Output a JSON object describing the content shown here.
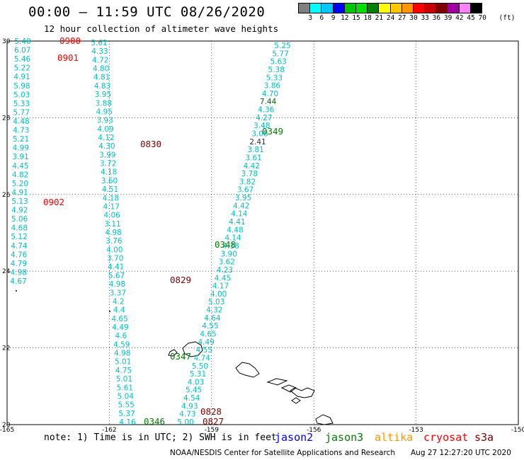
{
  "header": {
    "title": "00:00 — 11:59 UTC 08/26/2020",
    "subtitle": "12 hour collection of altimeter wave heights"
  },
  "legend": {
    "colors": [
      "#808080",
      "#00ffff",
      "#00c8ff",
      "#0000ff",
      "#00c800",
      "#00e000",
      "#008000",
      "#ffff00",
      "#ffc800",
      "#ff9600",
      "#ff0000",
      "#c80000",
      "#800000",
      "#a000a0",
      "#ff80ff",
      "#000000"
    ],
    "labels": [
      "3",
      "6",
      "9",
      "12",
      "15",
      "18",
      "21",
      "24",
      "27",
      "30",
      "33",
      "36",
      "39",
      "42",
      "45",
      "70"
    ],
    "unit": "(ft)"
  },
  "axes": {
    "lat_labels": [
      "30",
      "28",
      "26",
      "24",
      "22",
      "20"
    ],
    "lon_labels": [
      "-165",
      "-162",
      "-159",
      "-156",
      "-153",
      "-150"
    ]
  },
  "tracks": [
    {
      "name": "track-west",
      "values": [
        "5.40",
        "6.07",
        "5.46",
        "5.22",
        "4.91",
        "5.98",
        "5.03",
        "5.33",
        "5.77",
        "4.48",
        "4.73",
        "5.21",
        "4.99",
        "3.91",
        "4.45",
        "4.82",
        "5.20",
        "4.91",
        "5.13",
        "4.92",
        "5.06",
        "4.68",
        "5.12",
        "4.74",
        "4.76",
        "4.79",
        "4.98",
        "4.67"
      ]
    },
    {
      "name": "track-central-descending",
      "values": [
        "5.61",
        "4.33",
        "4.72",
        "4.80",
        "4.81",
        "4.83",
        "3.95",
        "3.88",
        "4.95",
        "3.93",
        "4.09",
        "4.12",
        "4.30",
        "3.99",
        "3.72",
        "4.18",
        "3.60",
        "4.51",
        "4.18",
        "4.17",
        "4.06",
        "3.11",
        "4.98",
        "3.76",
        "4.00",
        "3.70",
        "4.41",
        "5.67",
        "4.98",
        "3.37",
        "4.2",
        "4.4",
        "4.65",
        "4.49",
        "4.6",
        "4.59",
        "4.98",
        "5.01",
        "4.75",
        "5.01",
        "5.61",
        "5.04",
        "5.55",
        "5.37",
        "4.16"
      ]
    },
    {
      "name": "track-northeast",
      "values": [
        "5.25",
        "5.77",
        "5.63",
        "5.38",
        "5.33",
        "3.86",
        "4.70",
        "7.44",
        "4.36",
        "4.27",
        "3.48",
        "3.08",
        "2.41",
        "3.81",
        "3.61",
        "4.42",
        "3.78",
        "3.82",
        "3.67",
        "3.95",
        "4.42",
        "4.14",
        "4.41",
        "4.48",
        "4.14",
        "4.38",
        "3.90",
        "3.62",
        "4.23",
        "4.45",
        "4.17",
        "4.00",
        "5.03",
        "4.32",
        "4.64",
        "4.55",
        "4.65",
        "4.49",
        "4.55",
        "4.74",
        "5.50",
        "5.31",
        "4.03",
        "5.45",
        "4.54",
        "4.93",
        "4.73",
        "5.00"
      ]
    }
  ],
  "time_labels": [
    {
      "text": "0900",
      "color": "#ff0000"
    },
    {
      "text": "0901",
      "color": "#ff0000"
    },
    {
      "text": "0830",
      "color": "#800000"
    },
    {
      "text": "0902",
      "color": "#ff0000"
    },
    {
      "text": "0829",
      "color": "#800000"
    },
    {
      "text": "0828",
      "color": "#800000"
    },
    {
      "text": "0827",
      "color": "#800000"
    },
    {
      "text": "0349",
      "color": "#008000"
    },
    {
      "text": "0348",
      "color": "#008000"
    },
    {
      "text": "0347",
      "color": "#008000"
    },
    {
      "text": "0346",
      "color": "#008000"
    }
  ],
  "footer": {
    "note": "note: 1) Time is in UTC; 2) SWH is in feet",
    "satellites": [
      {
        "name": "jason2",
        "color": "#0000ff"
      },
      {
        "name": "jason3",
        "color": "#008000"
      },
      {
        "name": "altika",
        "color": "#ff9600"
      },
      {
        "name": "cryosat",
        "color": "#ff0000"
      },
      {
        "name": "s3a",
        "color": "#800000"
      }
    ],
    "credit": "NOAA/NESDIS Center for Satellite Applications and Research",
    "timestamp": "Aug 27 12:27:20 UTC 2020"
  }
}
